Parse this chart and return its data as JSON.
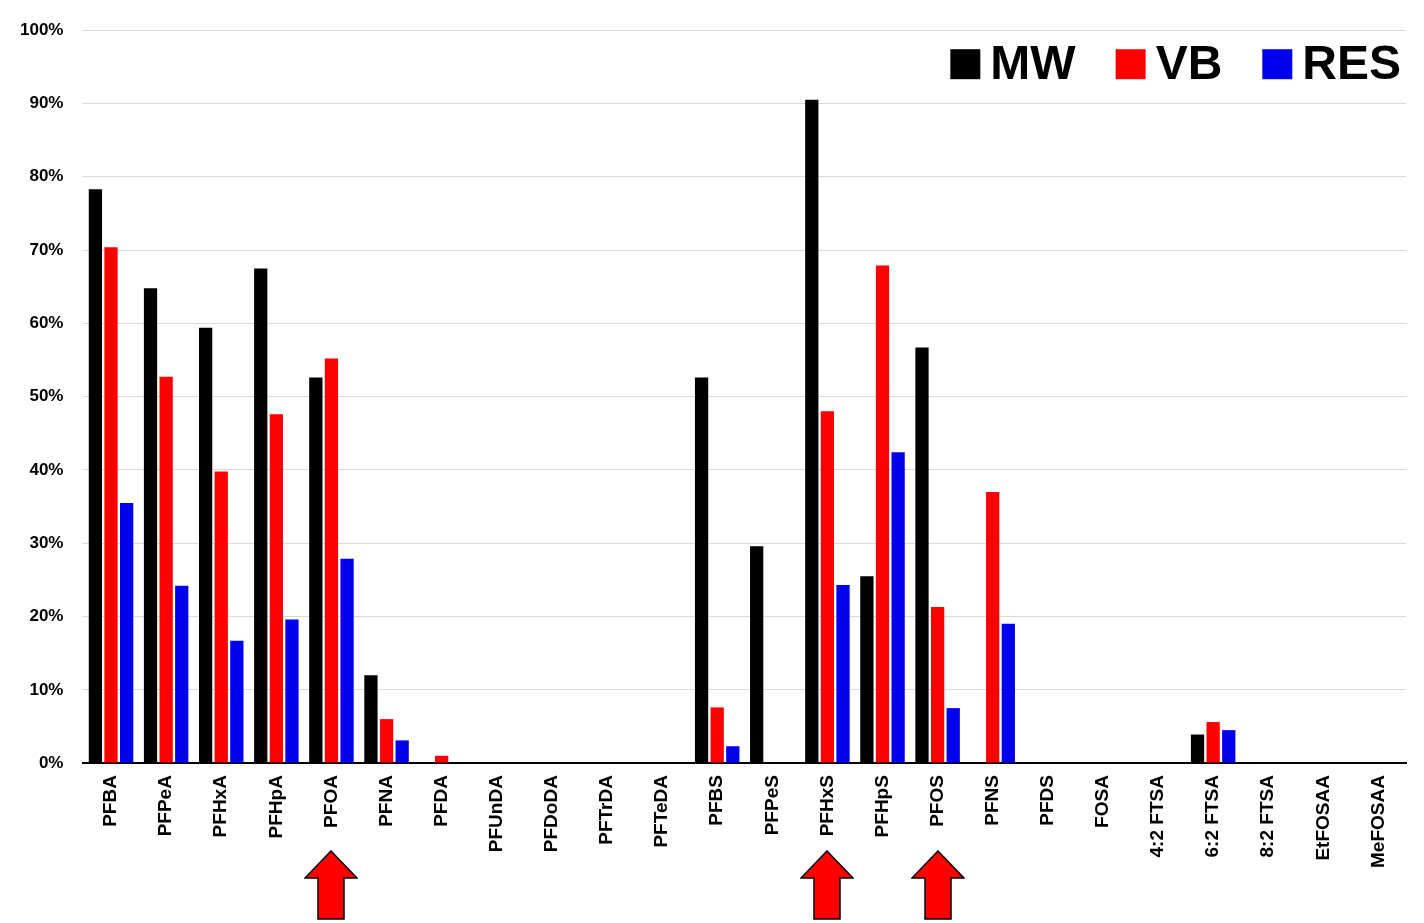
{
  "chart_data": {
    "type": "bar",
    "categories": [
      "PFBA",
      "PFPeA",
      "PFHxA",
      "PFHpA",
      "PFOA",
      "PFNA",
      "PFDA",
      "PFUnDA",
      "PFDoDA",
      "PFTrDA",
      "PFTeDA",
      "PFBS",
      "PFPeS",
      "PFHxS",
      "PFHpS",
      "PFOS",
      "PFNS",
      "PFDS",
      "FOSA",
      "4:2 FTSA",
      "6:2 FTSA",
      "8:2 FTSA",
      "EtFOSAA",
      "MeFOSAA"
    ],
    "series": [
      {
        "name": "MW",
        "color": "#000000",
        "values": [
          78.3,
          64.8,
          59.4,
          67.5,
          52.6,
          12.0,
          0,
          0,
          0,
          0,
          0,
          52.6,
          29.6,
          90.5,
          25.5,
          56.7,
          0,
          0,
          0,
          0,
          3.9,
          0,
          0,
          0
        ]
      },
      {
        "name": "VB",
        "color": "#ff0000",
        "values": [
          70.4,
          52.7,
          39.8,
          47.6,
          55.2,
          6.0,
          1.0,
          0,
          0,
          0,
          0,
          7.6,
          0,
          48.0,
          67.9,
          21.3,
          37.0,
          0,
          0,
          0,
          5.6,
          0,
          0,
          0
        ]
      },
      {
        "name": "RES",
        "color": "#0000ee",
        "values": [
          35.5,
          24.2,
          16.7,
          19.6,
          27.9,
          3.1,
          0,
          0,
          0,
          0,
          0,
          2.3,
          0,
          24.3,
          42.4,
          7.5,
          19.0,
          0,
          0,
          0,
          4.5,
          0,
          0,
          0
        ]
      }
    ],
    "ylim": [
      0,
      100
    ],
    "yticks": [
      {
        "value": 0,
        "label": "0%"
      },
      {
        "value": 10,
        "label": "10%"
      },
      {
        "value": 20,
        "label": "20%"
      },
      {
        "value": 30,
        "label": "30%"
      },
      {
        "value": 40,
        "label": "40%"
      },
      {
        "value": 50,
        "label": "50%"
      },
      {
        "value": 60,
        "label": "60%"
      },
      {
        "value": 70,
        "label": "70%"
      },
      {
        "value": 80,
        "label": "80%"
      },
      {
        "value": 90,
        "label": "90%"
      },
      {
        "value": 100,
        "label": "100%"
      }
    ],
    "grid": "y",
    "legend": "top right"
  }
}
